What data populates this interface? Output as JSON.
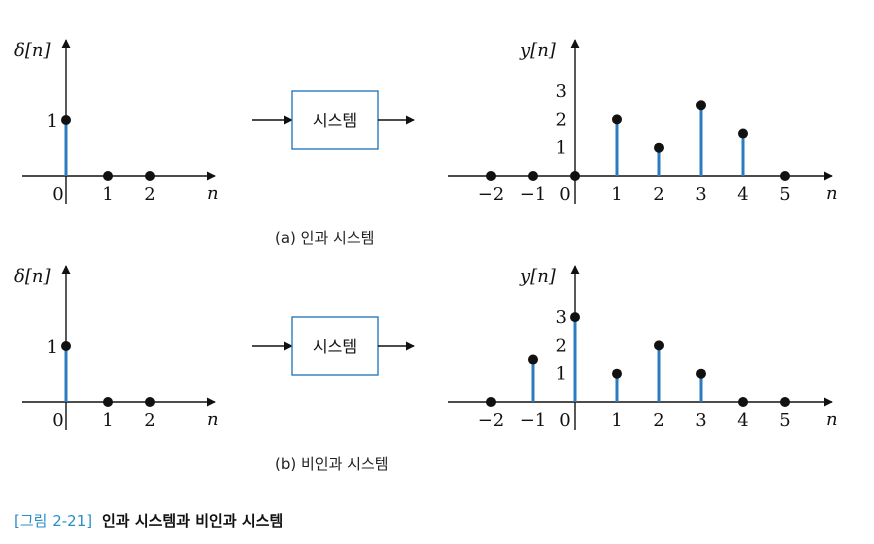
{
  "panels": [
    {
      "id": "a",
      "input": {
        "ylabel": "δ[n]",
        "xlabel": "n",
        "ticks": [
          "0",
          "1",
          "2"
        ],
        "ytick": "1",
        "points": [
          {
            "n": 0,
            "v": 1
          },
          {
            "n": 1,
            "v": 0
          },
          {
            "n": 2,
            "v": 0
          }
        ]
      },
      "system_label": "시스템",
      "output": {
        "ylabel": "y[n]",
        "xlabel": "n",
        "ticks": [
          "−2",
          "−1",
          "0",
          "1",
          "2",
          "3",
          "4",
          "5"
        ],
        "yticks": [
          "1",
          "2",
          "3"
        ],
        "points": [
          {
            "n": -2,
            "v": 0
          },
          {
            "n": -1,
            "v": 0
          },
          {
            "n": 0,
            "v": 0
          },
          {
            "n": 1,
            "v": 2
          },
          {
            "n": 2,
            "v": 1
          },
          {
            "n": 3,
            "v": 2.5
          },
          {
            "n": 4,
            "v": 1.5
          },
          {
            "n": 5,
            "v": 0
          }
        ]
      },
      "caption": "(a) 인과 시스템"
    },
    {
      "id": "b",
      "input": {
        "ylabel": "δ[n]",
        "xlabel": "n",
        "ticks": [
          "0",
          "1",
          "2"
        ],
        "ytick": "1",
        "points": [
          {
            "n": 0,
            "v": 1
          },
          {
            "n": 1,
            "v": 0
          },
          {
            "n": 2,
            "v": 0
          }
        ]
      },
      "system_label": "시스템",
      "output": {
        "ylabel": "y[n]",
        "xlabel": "n",
        "ticks": [
          "−2",
          "−1",
          "0",
          "1",
          "2",
          "3",
          "4",
          "5"
        ],
        "yticks": [
          "1",
          "2",
          "3"
        ],
        "points": [
          {
            "n": -2,
            "v": 0
          },
          {
            "n": -1,
            "v": 1.5
          },
          {
            "n": 0,
            "v": 3
          },
          {
            "n": 1,
            "v": 1
          },
          {
            "n": 2,
            "v": 2
          },
          {
            "n": 3,
            "v": 1
          },
          {
            "n": 4,
            "v": 0
          },
          {
            "n": 5,
            "v": 0
          }
        ]
      },
      "caption": "(b) 비인과 시스템"
    }
  ],
  "figure_label": "[그림 2-21]",
  "figure_title": "인과 시스템과 비인과 시스템",
  "colors": {
    "stem": "#2a7bbf",
    "box": "#2a7bbf",
    "label": "#2a8fc6",
    "axis": "#111111"
  }
}
